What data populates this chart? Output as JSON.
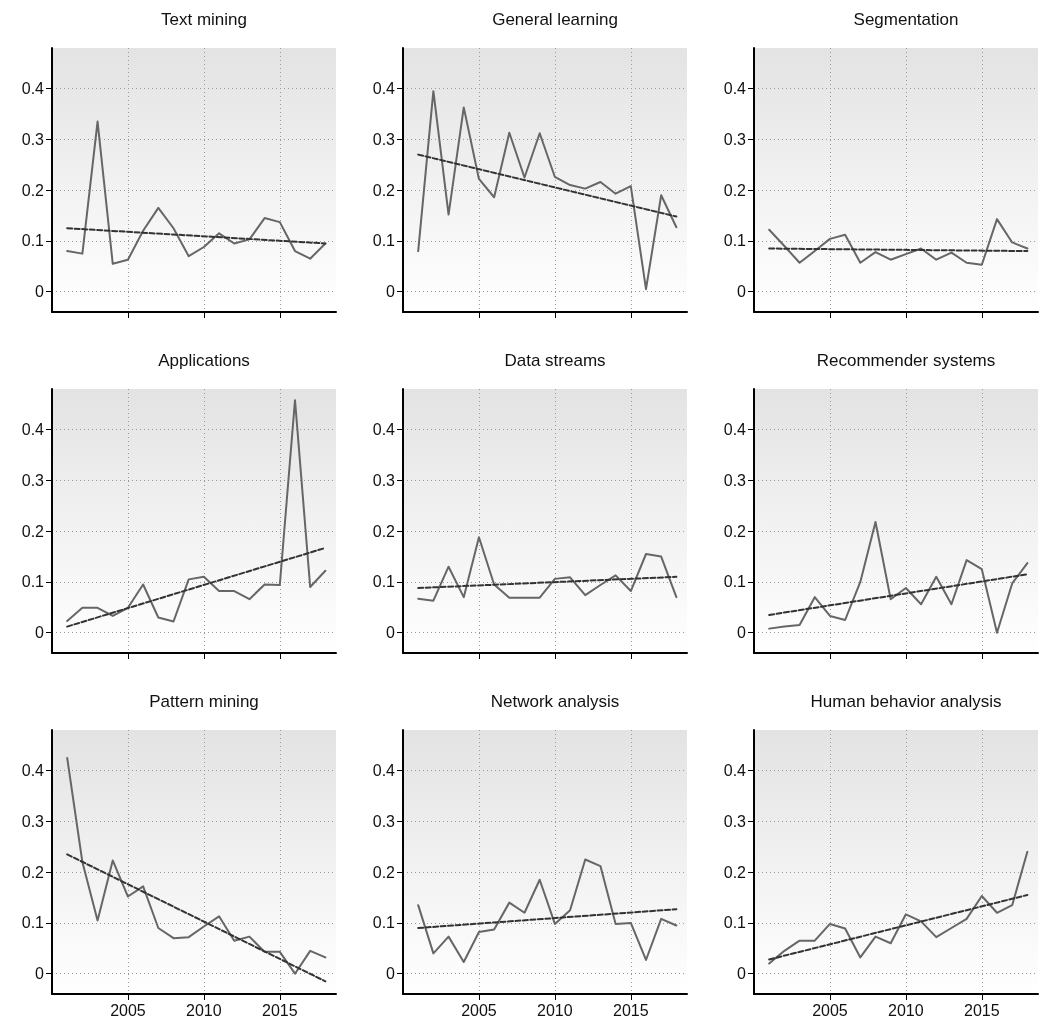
{
  "chart_data": [
    {
      "type": "line",
      "title": "Text mining",
      "xlim": [
        2000,
        2018.7
      ],
      "xticks": [
        2005,
        2010,
        2015
      ],
      "ylim": [
        -0.04,
        0.48
      ],
      "yticks": [
        0,
        0.1,
        0.2,
        0.3,
        0.4
      ],
      "grid": true,
      "marker": "none",
      "tick_labels": "y",
      "series": [
        {
          "color": "#666666",
          "x": [
            2001,
            2002,
            2003,
            2004,
            2005,
            2006,
            2007,
            2008,
            2009,
            2010,
            2011,
            2012,
            2013,
            2014,
            2015,
            2016,
            2017,
            2018
          ],
          "values": [
            0.08,
            0.075,
            0.335,
            0.055,
            0.063,
            0.12,
            0.165,
            0.125,
            0.07,
            0.088,
            0.115,
            0.095,
            0.103,
            0.145,
            0.137,
            0.08,
            0.065,
            0.095
          ]
        },
        {
          "color": "#333333",
          "line_style": "dashed",
          "x": [
            2001,
            2018
          ],
          "values": [
            0.125,
            0.095
          ]
        }
      ]
    },
    {
      "type": "line",
      "title": "General learning",
      "xlim": [
        2000,
        2018.7
      ],
      "xticks": [
        2005,
        2010,
        2015
      ],
      "ylim": [
        -0.04,
        0.48
      ],
      "yticks": [
        0,
        0.1,
        0.2,
        0.3,
        0.4
      ],
      "grid": true,
      "marker": "none",
      "tick_labels": "y",
      "series": [
        {
          "color": "#666666",
          "x": [
            2001,
            2002,
            2003,
            2004,
            2005,
            2006,
            2007,
            2008,
            2009,
            2010,
            2011,
            2012,
            2013,
            2014,
            2015,
            2016,
            2017,
            2018
          ],
          "values": [
            0.08,
            0.395,
            0.152,
            0.363,
            0.222,
            0.186,
            0.313,
            0.225,
            0.312,
            0.226,
            0.21,
            0.203,
            0.216,
            0.193,
            0.208,
            0.005,
            0.19,
            0.127
          ]
        },
        {
          "color": "#333333",
          "line_style": "dashed",
          "x": [
            2001,
            2018
          ],
          "values": [
            0.27,
            0.148
          ]
        }
      ]
    },
    {
      "type": "line",
      "title": "Segmentation",
      "xlim": [
        2000,
        2018.7
      ],
      "xticks": [
        2005,
        2010,
        2015
      ],
      "ylim": [
        -0.04,
        0.48
      ],
      "yticks": [
        0,
        0.1,
        0.2,
        0.3,
        0.4
      ],
      "grid": true,
      "marker": "none",
      "tick_labels": "y",
      "series": [
        {
          "color": "#666666",
          "x": [
            2001,
            2002,
            2003,
            2004,
            2005,
            2006,
            2007,
            2008,
            2009,
            2010,
            2011,
            2012,
            2013,
            2014,
            2015,
            2016,
            2017,
            2018
          ],
          "values": [
            0.122,
            0.09,
            0.057,
            0.08,
            0.104,
            0.112,
            0.057,
            0.078,
            0.063,
            0.074,
            0.085,
            0.063,
            0.077,
            0.057,
            0.053,
            0.143,
            0.097,
            0.085
          ]
        },
        {
          "color": "#333333",
          "line_style": "dashed",
          "x": [
            2001,
            2018
          ],
          "values": [
            0.085,
            0.08
          ]
        }
      ]
    },
    {
      "type": "line",
      "title": "Applications",
      "xlim": [
        2000,
        2018.7
      ],
      "xticks": [
        2005,
        2010,
        2015
      ],
      "ylim": [
        -0.04,
        0.48
      ],
      "yticks": [
        0,
        0.1,
        0.2,
        0.3,
        0.4
      ],
      "grid": true,
      "marker": "none",
      "tick_labels": "y",
      "series": [
        {
          "color": "#666666",
          "x": [
            2001,
            2002,
            2003,
            2004,
            2005,
            2006,
            2007,
            2008,
            2009,
            2010,
            2011,
            2012,
            2013,
            2014,
            2015,
            2016,
            2017,
            2018
          ],
          "values": [
            0.023,
            0.049,
            0.049,
            0.033,
            0.049,
            0.095,
            0.03,
            0.022,
            0.105,
            0.11,
            0.082,
            0.082,
            0.066,
            0.095,
            0.094,
            0.458,
            0.09,
            0.122
          ]
        },
        {
          "color": "#333333",
          "line_style": "dashed",
          "x": [
            2001,
            2018
          ],
          "values": [
            0.012,
            0.167
          ]
        }
      ]
    },
    {
      "type": "line",
      "title": "Data streams",
      "xlim": [
        2000,
        2018.7
      ],
      "xticks": [
        2005,
        2010,
        2015
      ],
      "ylim": [
        -0.04,
        0.48
      ],
      "yticks": [
        0,
        0.1,
        0.2,
        0.3,
        0.4
      ],
      "grid": true,
      "marker": "none",
      "tick_labels": "y",
      "series": [
        {
          "color": "#666666",
          "x": [
            2001,
            2002,
            2003,
            2004,
            2005,
            2006,
            2007,
            2008,
            2009,
            2010,
            2011,
            2012,
            2013,
            2014,
            2015,
            2016,
            2017,
            2018
          ],
          "values": [
            0.067,
            0.063,
            0.13,
            0.07,
            0.188,
            0.095,
            0.069,
            0.069,
            0.069,
            0.106,
            0.109,
            0.074,
            0.094,
            0.113,
            0.082,
            0.155,
            0.15,
            0.07
          ]
        },
        {
          "color": "#333333",
          "line_style": "dashed",
          "x": [
            2001,
            2018
          ],
          "values": [
            0.088,
            0.11
          ]
        }
      ]
    },
    {
      "type": "line",
      "title": "Recommender systems",
      "xlim": [
        2000,
        2018.7
      ],
      "xticks": [
        2005,
        2010,
        2015
      ],
      "ylim": [
        -0.04,
        0.48
      ],
      "yticks": [
        0,
        0.1,
        0.2,
        0.3,
        0.4
      ],
      "grid": true,
      "marker": "none",
      "tick_labels": "y",
      "series": [
        {
          "color": "#666666",
          "x": [
            2001,
            2002,
            2003,
            2004,
            2005,
            2006,
            2007,
            2008,
            2009,
            2010,
            2011,
            2012,
            2013,
            2014,
            2015,
            2016,
            2017,
            2018
          ],
          "values": [
            0.008,
            0.012,
            0.015,
            0.07,
            0.033,
            0.025,
            0.1,
            0.218,
            0.066,
            0.088,
            0.056,
            0.11,
            0.056,
            0.143,
            0.125,
            0.0,
            0.097,
            0.137
          ]
        },
        {
          "color": "#333333",
          "line_style": "dashed",
          "x": [
            2001,
            2018
          ],
          "values": [
            0.035,
            0.115
          ]
        }
      ]
    },
    {
      "type": "line",
      "title": "Pattern mining",
      "xlim": [
        2000,
        2018.7
      ],
      "xticks": [
        2005,
        2010,
        2015
      ],
      "ylim": [
        -0.04,
        0.48
      ],
      "yticks": [
        0,
        0.1,
        0.2,
        0.3,
        0.4
      ],
      "grid": true,
      "marker": "none",
      "series": [
        {
          "color": "#666666",
          "x": [
            2001,
            2002,
            2003,
            2004,
            2005,
            2006,
            2007,
            2008,
            2009,
            2010,
            2011,
            2012,
            2013,
            2014,
            2015,
            2016,
            2017,
            2018
          ],
          "values": [
            0.425,
            0.22,
            0.105,
            0.223,
            0.152,
            0.172,
            0.09,
            0.07,
            0.072,
            0.093,
            0.113,
            0.065,
            0.073,
            0.043,
            0.043,
            0.0,
            0.045,
            0.032
          ]
        },
        {
          "color": "#333333",
          "line_style": "dashed",
          "x": [
            2001,
            2018
          ],
          "values": [
            0.235,
            -0.015
          ]
        }
      ]
    },
    {
      "type": "line",
      "title": "Network analysis",
      "xlim": [
        2000,
        2018.7
      ],
      "xticks": [
        2005,
        2010,
        2015
      ],
      "ylim": [
        -0.04,
        0.48
      ],
      "yticks": [
        0,
        0.1,
        0.2,
        0.3,
        0.4
      ],
      "grid": true,
      "marker": "none",
      "series": [
        {
          "color": "#666666",
          "x": [
            2001,
            2002,
            2003,
            2004,
            2005,
            2006,
            2007,
            2008,
            2009,
            2010,
            2011,
            2012,
            2013,
            2014,
            2015,
            2016,
            2017,
            2018
          ],
          "values": [
            0.135,
            0.04,
            0.073,
            0.023,
            0.082,
            0.087,
            0.14,
            0.12,
            0.185,
            0.098,
            0.125,
            0.225,
            0.212,
            0.098,
            0.1,
            0.027,
            0.108,
            0.095
          ]
        },
        {
          "color": "#333333",
          "line_style": "dashed",
          "x": [
            2001,
            2018
          ],
          "values": [
            0.09,
            0.127
          ]
        }
      ]
    },
    {
      "type": "line",
      "title": "Human behavior analysis",
      "xlim": [
        2000,
        2018.7
      ],
      "xticks": [
        2005,
        2010,
        2015
      ],
      "ylim": [
        -0.04,
        0.48
      ],
      "yticks": [
        0,
        0.1,
        0.2,
        0.3,
        0.4
      ],
      "grid": true,
      "marker": "none",
      "series": [
        {
          "color": "#666666",
          "x": [
            2001,
            2002,
            2003,
            2004,
            2005,
            2006,
            2007,
            2008,
            2009,
            2010,
            2011,
            2012,
            2013,
            2014,
            2015,
            2016,
            2017,
            2018
          ],
          "values": [
            0.02,
            0.045,
            0.065,
            0.065,
            0.098,
            0.089,
            0.032,
            0.073,
            0.06,
            0.117,
            0.103,
            0.072,
            0.09,
            0.108,
            0.153,
            0.12,
            0.135,
            0.24
          ]
        },
        {
          "color": "#333333",
          "line_style": "dashed",
          "x": [
            2001,
            2018
          ],
          "values": [
            0.028,
            0.155
          ]
        }
      ]
    }
  ]
}
